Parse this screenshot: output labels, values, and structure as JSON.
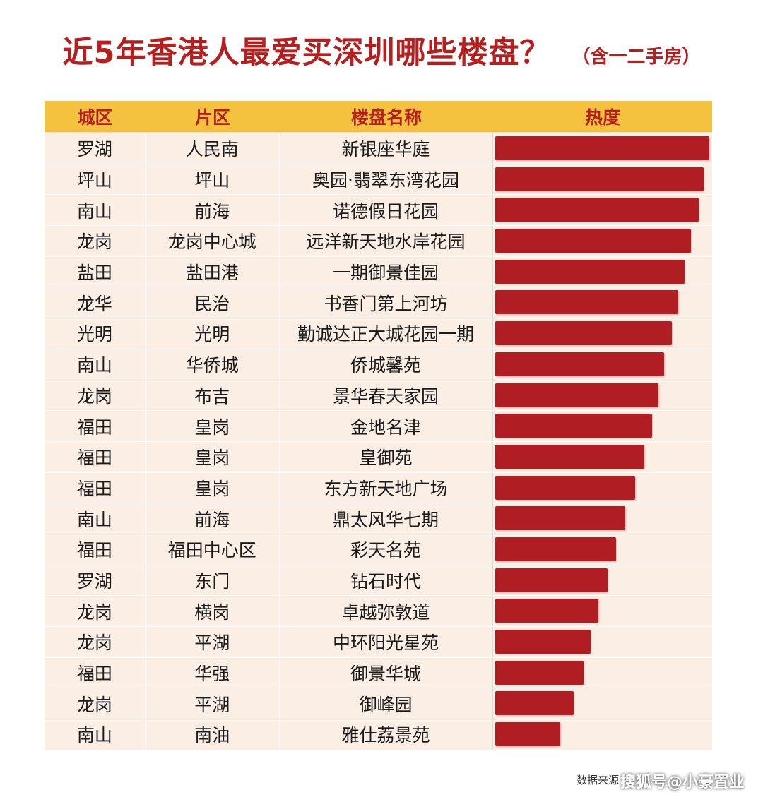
{
  "title": "近5年香港人最爱买深圳哪些楼盘？",
  "subtitle": "（含一二手房）",
  "source": "数据来源",
  "watermark": "搜狐号@小豪置业",
  "chart_data": {
    "type": "table",
    "columns": [
      "城区",
      "片区",
      "楼盘名称",
      "热度"
    ],
    "rows": [
      {
        "district": "罗湖",
        "area": "人民南",
        "name": "新银座华庭",
        "heat": 100
      },
      {
        "district": "坪山",
        "area": "坪山",
        "name": "奥园·翡翠东湾花园",
        "heat": 97.4
      },
      {
        "district": "南山",
        "area": "前海",
        "name": "诺德假日花园",
        "heat": 94.8
      },
      {
        "district": "龙岗",
        "area": "龙岗中心城",
        "name": "远洋新天地水岸花园",
        "heat": 91.2
      },
      {
        "district": "盐田",
        "area": "盐田港",
        "name": "一期御景佳园",
        "heat": 88.2
      },
      {
        "district": "龙华",
        "area": "民治",
        "name": "书香门第上河坊",
        "heat": 85.3
      },
      {
        "district": "光明",
        "area": "光明",
        "name": "勤诚达正大城花园一期",
        "heat": 82.4
      },
      {
        "district": "南山",
        "area": "华侨城",
        "name": "侨城馨苑",
        "heat": 78.8
      },
      {
        "district": "龙岗",
        "area": "布吉",
        "name": "景华春天家园",
        "heat": 76.1
      },
      {
        "district": "福田",
        "area": "皇岗",
        "name": "金地名津",
        "heat": 73.2
      },
      {
        "district": "福田",
        "area": "皇岗",
        "name": "皇御苑",
        "heat": 69.6
      },
      {
        "district": "福田",
        "area": "皇岗",
        "name": "东方新天地广场",
        "heat": 65.4
      },
      {
        "district": "南山",
        "area": "前海",
        "name": "鼎太风华七期",
        "heat": 60.5
      },
      {
        "district": "福田",
        "area": "福田中心区",
        "name": "彩天名苑",
        "heat": 56.3
      },
      {
        "district": "罗湖",
        "area": "东门",
        "name": "钻石时代",
        "heat": 52.3
      },
      {
        "district": "龙岗",
        "area": "横岗",
        "name": "卓越弥敦道",
        "heat": 48
      },
      {
        "district": "龙岗",
        "area": "平湖",
        "name": "中环阳光星苑",
        "heat": 44.3
      },
      {
        "district": "福田",
        "area": "华强",
        "name": "御景华城",
        "heat": 41.1
      },
      {
        "district": "龙岗",
        "area": "平湖",
        "name": "御峰园",
        "heat": 36.6
      },
      {
        "district": "南山",
        "area": "南油",
        "name": "雅仕荔景苑",
        "heat": 30.1
      }
    ],
    "bar_color": "#b01e24",
    "header_color": "#f4c23f",
    "header_text_color": "#b5201f",
    "row_color": "#fbeee5"
  }
}
